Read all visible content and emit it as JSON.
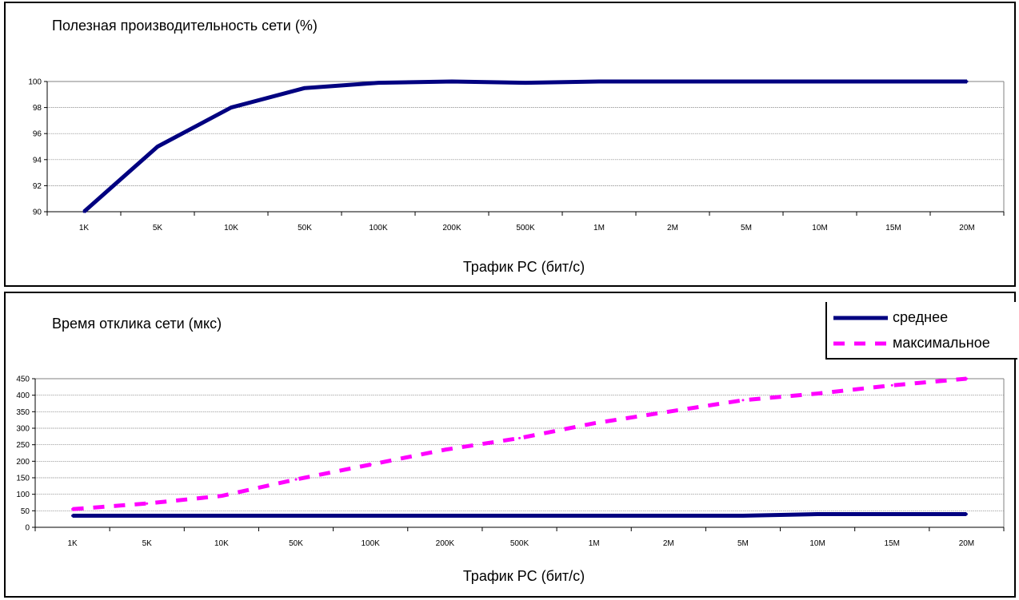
{
  "chart_data": [
    {
      "type": "line",
      "title": "Полезная производительность сети (%)",
      "xlabel": "Трафик PC (бит/с)",
      "ylabel": "",
      "categories": [
        "1K",
        "5K",
        "10K",
        "50K",
        "100K",
        "200K",
        "500K",
        "1M",
        "2M",
        "5M",
        "10M",
        "15M",
        "20M"
      ],
      "ylim": [
        90,
        100
      ],
      "yticks": [
        "90",
        "92",
        "94",
        "96",
        "98",
        "100"
      ],
      "grid": true,
      "series": [
        {
          "color": "#000080",
          "dash": "solid",
          "values": [
            90,
            95,
            98,
            99.5,
            99.9,
            100,
            99.9,
            100,
            100,
            100,
            100,
            100,
            100
          ]
        }
      ]
    },
    {
      "type": "line",
      "title": "Время отклика сети (мкс)",
      "xlabel": "Трафик PC (бит/с)",
      "ylabel": "",
      "categories": [
        "1K",
        "5K",
        "10K",
        "50K",
        "100K",
        "200K",
        "500K",
        "1M",
        "2M",
        "5M",
        "10M",
        "15M",
        "20M"
      ],
      "ylim": [
        0,
        450
      ],
      "yticks": [
        "0",
        "50",
        "100",
        "150",
        "200",
        "250",
        "300",
        "350",
        "400",
        "450"
      ],
      "grid": true,
      "legend_position": "top-right",
      "series": [
        {
          "name": "среднее",
          "color": "#000080",
          "dash": "solid",
          "values": [
            35,
            35,
            35,
            35,
            35,
            35,
            35,
            35,
            35,
            35,
            40,
            40,
            40
          ]
        },
        {
          "name": "максимальное",
          "color": "#ff00ff",
          "dash": "dashed",
          "values": [
            55,
            72,
            95,
            145,
            190,
            235,
            270,
            315,
            350,
            385,
            405,
            430,
            450
          ]
        }
      ]
    }
  ]
}
